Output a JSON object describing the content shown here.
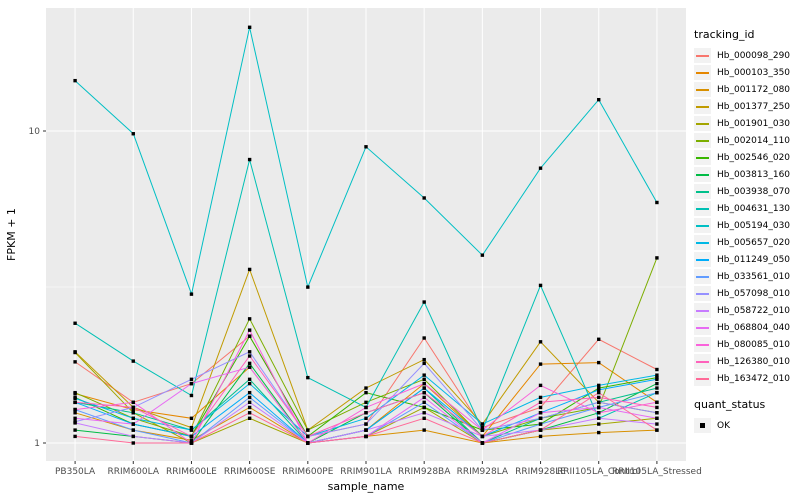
{
  "chart_data": {
    "type": "line",
    "title": "",
    "xlabel": "sample_name",
    "ylabel": "FPKM + 1",
    "y_scale": "log10",
    "y_ticks": [
      1,
      10
    ],
    "y_minor_ticks": [
      3.162
    ],
    "ylim": [
      0.875,
      24.8
    ],
    "grid": true,
    "legend_position": "right",
    "point_shape": "filled-square",
    "point_color": "#000000",
    "categories": [
      "PB350LA",
      "RRIM600LA",
      "RRIM600LE",
      "RRIM600SE",
      "RRIM600PE",
      "RRIM901LA",
      "RRIM928BA",
      "RRIM928LA",
      "RRIM928LE",
      "RRII105LA_Control",
      "RRII105LA_Stressed"
    ],
    "series": [
      {
        "name": "Hb_000098_290",
        "color": "#F8766D",
        "values": [
          1.82,
          1.35,
          1.55,
          2.2,
          1.05,
          1.15,
          2.17,
          1.12,
          1.3,
          2.15,
          1.72
        ]
      },
      {
        "name": "Hb_000103_350",
        "color": "#E58700",
        "values": [
          1.44,
          1.28,
          1.2,
          1.75,
          1.0,
          1.1,
          1.55,
          1.05,
          1.79,
          1.81,
          1.35
        ]
      },
      {
        "name": "Hb_001172_080",
        "color": "#D89000",
        "values": [
          1.25,
          1.1,
          1.02,
          1.3,
          1.0,
          1.05,
          1.1,
          1.0,
          1.05,
          1.08,
          1.1
        ]
      },
      {
        "name": "Hb_001377_250",
        "color": "#C09B00",
        "values": [
          1.96,
          1.3,
          1.12,
          3.6,
          1.1,
          1.5,
          1.85,
          1.15,
          2.11,
          1.35,
          1.25
        ]
      },
      {
        "name": "Hb_001901_030",
        "color": "#A3A500",
        "values": [
          1.95,
          1.25,
          1.0,
          1.2,
          1.0,
          1.05,
          1.3,
          1.0,
          1.1,
          1.15,
          1.2
        ]
      },
      {
        "name": "Hb_002014_110",
        "color": "#7CAE00",
        "values": [
          1.45,
          1.2,
          1.05,
          2.5,
          1.1,
          1.35,
          1.6,
          1.05,
          1.2,
          1.3,
          3.92
        ]
      },
      {
        "name": "Hb_002546_020",
        "color": "#39B600",
        "values": [
          1.4,
          1.15,
          1.05,
          2.2,
          1.05,
          1.45,
          1.3,
          1.1,
          1.15,
          1.5,
          1.62
        ]
      },
      {
        "name": "Hb_003813_160",
        "color": "#00BB45",
        "values": [
          1.1,
          1.05,
          1.0,
          1.8,
          1.0,
          1.25,
          1.45,
          1.0,
          1.1,
          1.25,
          1.55
        ]
      },
      {
        "name": "Hb_003938_070",
        "color": "#00C08B",
        "values": [
          1.35,
          1.25,
          1.1,
          1.6,
          1.0,
          1.1,
          1.5,
          1.0,
          1.2,
          1.35,
          1.5
        ]
      },
      {
        "name": "Hb_004631_130",
        "color": "#00C0B4",
        "values": [
          2.42,
          1.83,
          1.42,
          8.1,
          1.62,
          1.3,
          2.83,
          1.1,
          3.2,
          1.2,
          1.45
        ]
      },
      {
        "name": "Hb_005194_030",
        "color": "#00BFC4",
        "values": [
          14.5,
          9.8,
          3.0,
          21.5,
          3.16,
          8.9,
          6.1,
          4.0,
          7.6,
          12.6,
          5.9
        ]
      },
      {
        "name": "Hb_005657_020",
        "color": "#00B8E5",
        "values": [
          1.39,
          1.2,
          1.1,
          1.55,
          1.05,
          1.2,
          1.65,
          1.15,
          1.4,
          1.53,
          1.65
        ]
      },
      {
        "name": "Hb_011249_050",
        "color": "#00ADFA",
        "values": [
          1.35,
          1.15,
          1.05,
          1.45,
          1.0,
          1.1,
          1.5,
          1.05,
          1.25,
          1.48,
          1.6
        ]
      },
      {
        "name": "Hb_033561_010",
        "color": "#619CFF",
        "values": [
          1.28,
          1.1,
          1.0,
          1.4,
          1.0,
          1.05,
          1.35,
          1.0,
          1.15,
          1.3,
          1.45
        ]
      },
      {
        "name": "Hb_057098_010",
        "color": "#9590FF",
        "values": [
          1.17,
          1.3,
          1.6,
          1.96,
          1.05,
          1.15,
          1.8,
          1.1,
          1.2,
          1.35,
          1.25
        ]
      },
      {
        "name": "Hb_058722_010",
        "color": "#C77CFF",
        "values": [
          1.16,
          1.05,
          1.0,
          1.35,
          1.0,
          1.1,
          1.25,
          1.05,
          1.1,
          1.2,
          1.15
        ]
      },
      {
        "name": "Hb_068804_040",
        "color": "#E76BF3",
        "values": [
          1.2,
          1.15,
          1.55,
          1.75,
          1.0,
          1.05,
          1.4,
          1.0,
          1.25,
          1.3,
          1.2
        ]
      },
      {
        "name": "Hb_080085_010",
        "color": "#FA62DB",
        "values": [
          1.28,
          1.35,
          1.0,
          2.3,
          1.0,
          1.3,
          1.55,
          1.1,
          1.53,
          1.25,
          1.35
        ]
      },
      {
        "name": "Hb_126380_010",
        "color": "#FF62BC",
        "values": [
          1.35,
          1.3,
          1.05,
          1.9,
          1.05,
          1.25,
          1.45,
          1.05,
          1.35,
          1.4,
          1.3
        ]
      },
      {
        "name": "Hb_163472_010",
        "color": "#FF6A98",
        "values": [
          1.05,
          1.0,
          1.0,
          1.25,
          1.0,
          1.05,
          1.2,
          1.0,
          1.1,
          1.45,
          1.1
        ]
      }
    ]
  },
  "legend": {
    "tracking_title": "tracking_id",
    "quant_title": "quant_status",
    "quant_items": [
      {
        "label": "OK",
        "marker": "black-square"
      }
    ]
  },
  "colors": {
    "page_bg": "#FFFFFF",
    "panel_bg": "#EBEBEB",
    "grid_major": "#FFFFFF",
    "grid_minor": "#FFFFFF",
    "axis_text": "#4D4D4D",
    "axis_title": "#000000",
    "tick_mark": "#333333",
    "legend_key_bg": "#F2F2F2",
    "point": "#000000"
  }
}
